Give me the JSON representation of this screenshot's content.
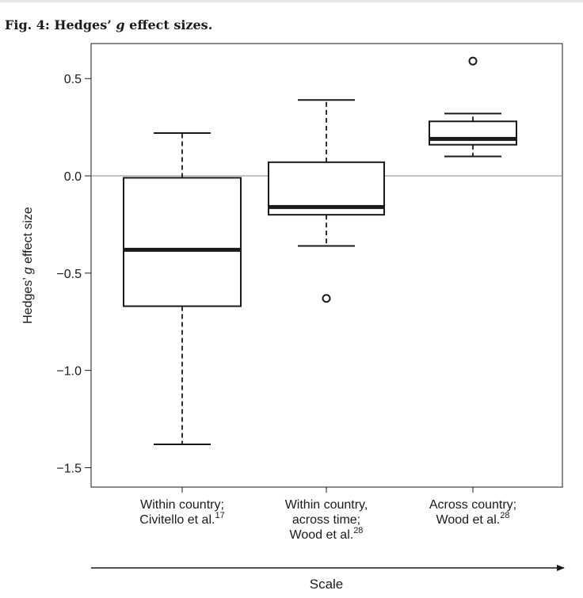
{
  "figure": {
    "title_prefix": "Fig. 4: Hedges’ ",
    "title_italic": "g",
    "title_suffix": " effect sizes."
  },
  "chart_data": {
    "type": "box",
    "ylabel_prefix": "Hedges’ ",
    "ylabel_italic": "g",
    "ylabel_suffix": " effect size",
    "xlabel": "Scale",
    "ylim": [
      -1.6,
      0.68
    ],
    "yticks": [
      0.5,
      0.0,
      -0.5,
      -1.0,
      -1.5
    ],
    "ytick_labels": [
      "0.5",
      "0.0",
      "−0.5",
      "−1.0",
      "−1.5"
    ],
    "reference_line_y": 0.0,
    "x_arrow": true,
    "groups": [
      {
        "label_lines": [
          "Within country;",
          "Civitello et al."
        ],
        "superscript": "17",
        "superscript_line": 1,
        "whisker_low": -1.38,
        "q1": -0.67,
        "median": -0.38,
        "q3": -0.01,
        "whisker_high": 0.22,
        "outliers": []
      },
      {
        "label_lines": [
          "Within country,",
          "across time;",
          "Wood et al."
        ],
        "superscript": "28",
        "superscript_line": 2,
        "whisker_low": -0.36,
        "q1": -0.2,
        "median": -0.16,
        "q3": 0.07,
        "whisker_high": 0.39,
        "outliers": [
          -0.63
        ]
      },
      {
        "label_lines": [
          "Across country;",
          "Wood et al."
        ],
        "superscript": "28",
        "superscript_line": 1,
        "whisker_low": 0.1,
        "q1": 0.16,
        "median": 0.19,
        "q3": 0.28,
        "whisker_high": 0.32,
        "outliers": [
          0.59
        ]
      }
    ]
  }
}
